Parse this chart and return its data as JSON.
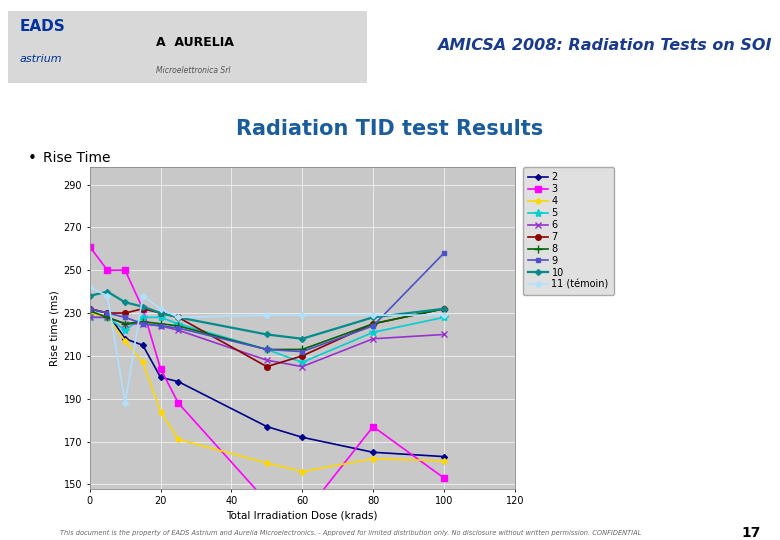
{
  "title": "Radiation TID test Results",
  "subtitle": "Rise Time",
  "header_title": "AMICSA 2008: Radiation Tests on SOI",
  "xlabel": "Total Irradiation Dose (krads)",
  "ylabel": "Rise time (ms)",
  "xlim": [
    0,
    120
  ],
  "ylim": [
    148,
    298
  ],
  "yticks": [
    150,
    170,
    190,
    210,
    230,
    250,
    270,
    290
  ],
  "xticks": [
    0,
    20,
    40,
    60,
    80,
    100,
    120
  ],
  "plot_bg": "#c8c8c8",
  "series": [
    {
      "label": "2",
      "color": "#00008B",
      "marker": "D",
      "markersize": 3,
      "linewidth": 1.2,
      "x": [
        0,
        5,
        10,
        15,
        20,
        25,
        50,
        60,
        80,
        100
      ],
      "y": [
        232,
        230,
        218,
        215,
        200,
        198,
        177,
        172,
        165,
        163
      ]
    },
    {
      "label": "3",
      "color": "#FF00FF",
      "marker": "s",
      "markersize": 4,
      "linewidth": 1.2,
      "x": [
        0,
        5,
        10,
        15,
        20,
        25,
        50,
        60,
        80,
        100
      ],
      "y": [
        261,
        250,
        250,
        232,
        204,
        188,
        142,
        135,
        177,
        153
      ]
    },
    {
      "label": "4",
      "color": "#FFD700",
      "marker": "D",
      "markersize": 3,
      "linewidth": 1.2,
      "x": [
        0,
        5,
        10,
        15,
        20,
        25,
        50,
        60,
        80,
        100
      ],
      "y": [
        230,
        228,
        217,
        207,
        184,
        171,
        160,
        156,
        162,
        161
      ]
    },
    {
      "label": "5",
      "color": "#00CED1",
      "marker": "*",
      "markersize": 6,
      "linewidth": 1.2,
      "x": [
        0,
        5,
        10,
        15,
        20,
        25,
        50,
        60,
        80,
        100
      ],
      "y": [
        228,
        228,
        222,
        228,
        228,
        225,
        213,
        207,
        221,
        228
      ]
    },
    {
      "label": "6",
      "color": "#9932CC",
      "marker": "x",
      "markersize": 5,
      "linewidth": 1.2,
      "x": [
        0,
        5,
        10,
        15,
        20,
        25,
        50,
        60,
        80,
        100
      ],
      "y": [
        228,
        228,
        225,
        225,
        224,
        222,
        208,
        205,
        218,
        220
      ]
    },
    {
      "label": "7",
      "color": "#8B0000",
      "marker": "o",
      "markersize": 4,
      "linewidth": 1.2,
      "x": [
        0,
        5,
        10,
        15,
        20,
        25,
        50,
        60,
        80,
        100
      ],
      "y": [
        232,
        230,
        230,
        232,
        230,
        228,
        205,
        210,
        225,
        232
      ]
    },
    {
      "label": "8",
      "color": "#006400",
      "marker": "+",
      "markersize": 6,
      "linewidth": 1.2,
      "x": [
        0,
        5,
        10,
        15,
        20,
        25,
        50,
        60,
        80,
        100
      ],
      "y": [
        231,
        228,
        225,
        226,
        225,
        224,
        213,
        213,
        225,
        232
      ]
    },
    {
      "label": "9",
      "color": "#5050C8",
      "marker": "s",
      "markersize": 3,
      "linewidth": 1.2,
      "x": [
        0,
        5,
        10,
        15,
        20,
        25,
        50,
        60,
        80,
        100
      ],
      "y": [
        232,
        230,
        228,
        225,
        224,
        223,
        213,
        212,
        224,
        258
      ]
    },
    {
      "label": "10",
      "color": "#008B8B",
      "marker": "D",
      "markersize": 3,
      "linewidth": 1.6,
      "x": [
        0,
        5,
        10,
        15,
        20,
        25,
        50,
        60,
        80,
        100
      ],
      "y": [
        238,
        240,
        235,
        233,
        230,
        228,
        220,
        218,
        228,
        232
      ]
    },
    {
      "label": "11 (témoin)",
      "color": "#B0E0FF",
      "marker": "D",
      "markersize": 3,
      "linewidth": 1.2,
      "x": [
        0,
        5,
        10,
        15,
        20,
        25,
        50,
        60,
        80,
        100
      ],
      "y": [
        242,
        238,
        188,
        238,
        232,
        228,
        229,
        229,
        229,
        229
      ]
    }
  ],
  "footer_text": "This document is the property of EADS Astrium and Aurelia Microelectronics. - Approved for limited distribution only. No disclosure without written permission. CONFIDENTIAL",
  "page_num": "17",
  "header_line_color": "#1A3A8C",
  "title_color": "#1A5C9C",
  "header_bg": "#ffffff",
  "slide_bg": "#ffffff"
}
